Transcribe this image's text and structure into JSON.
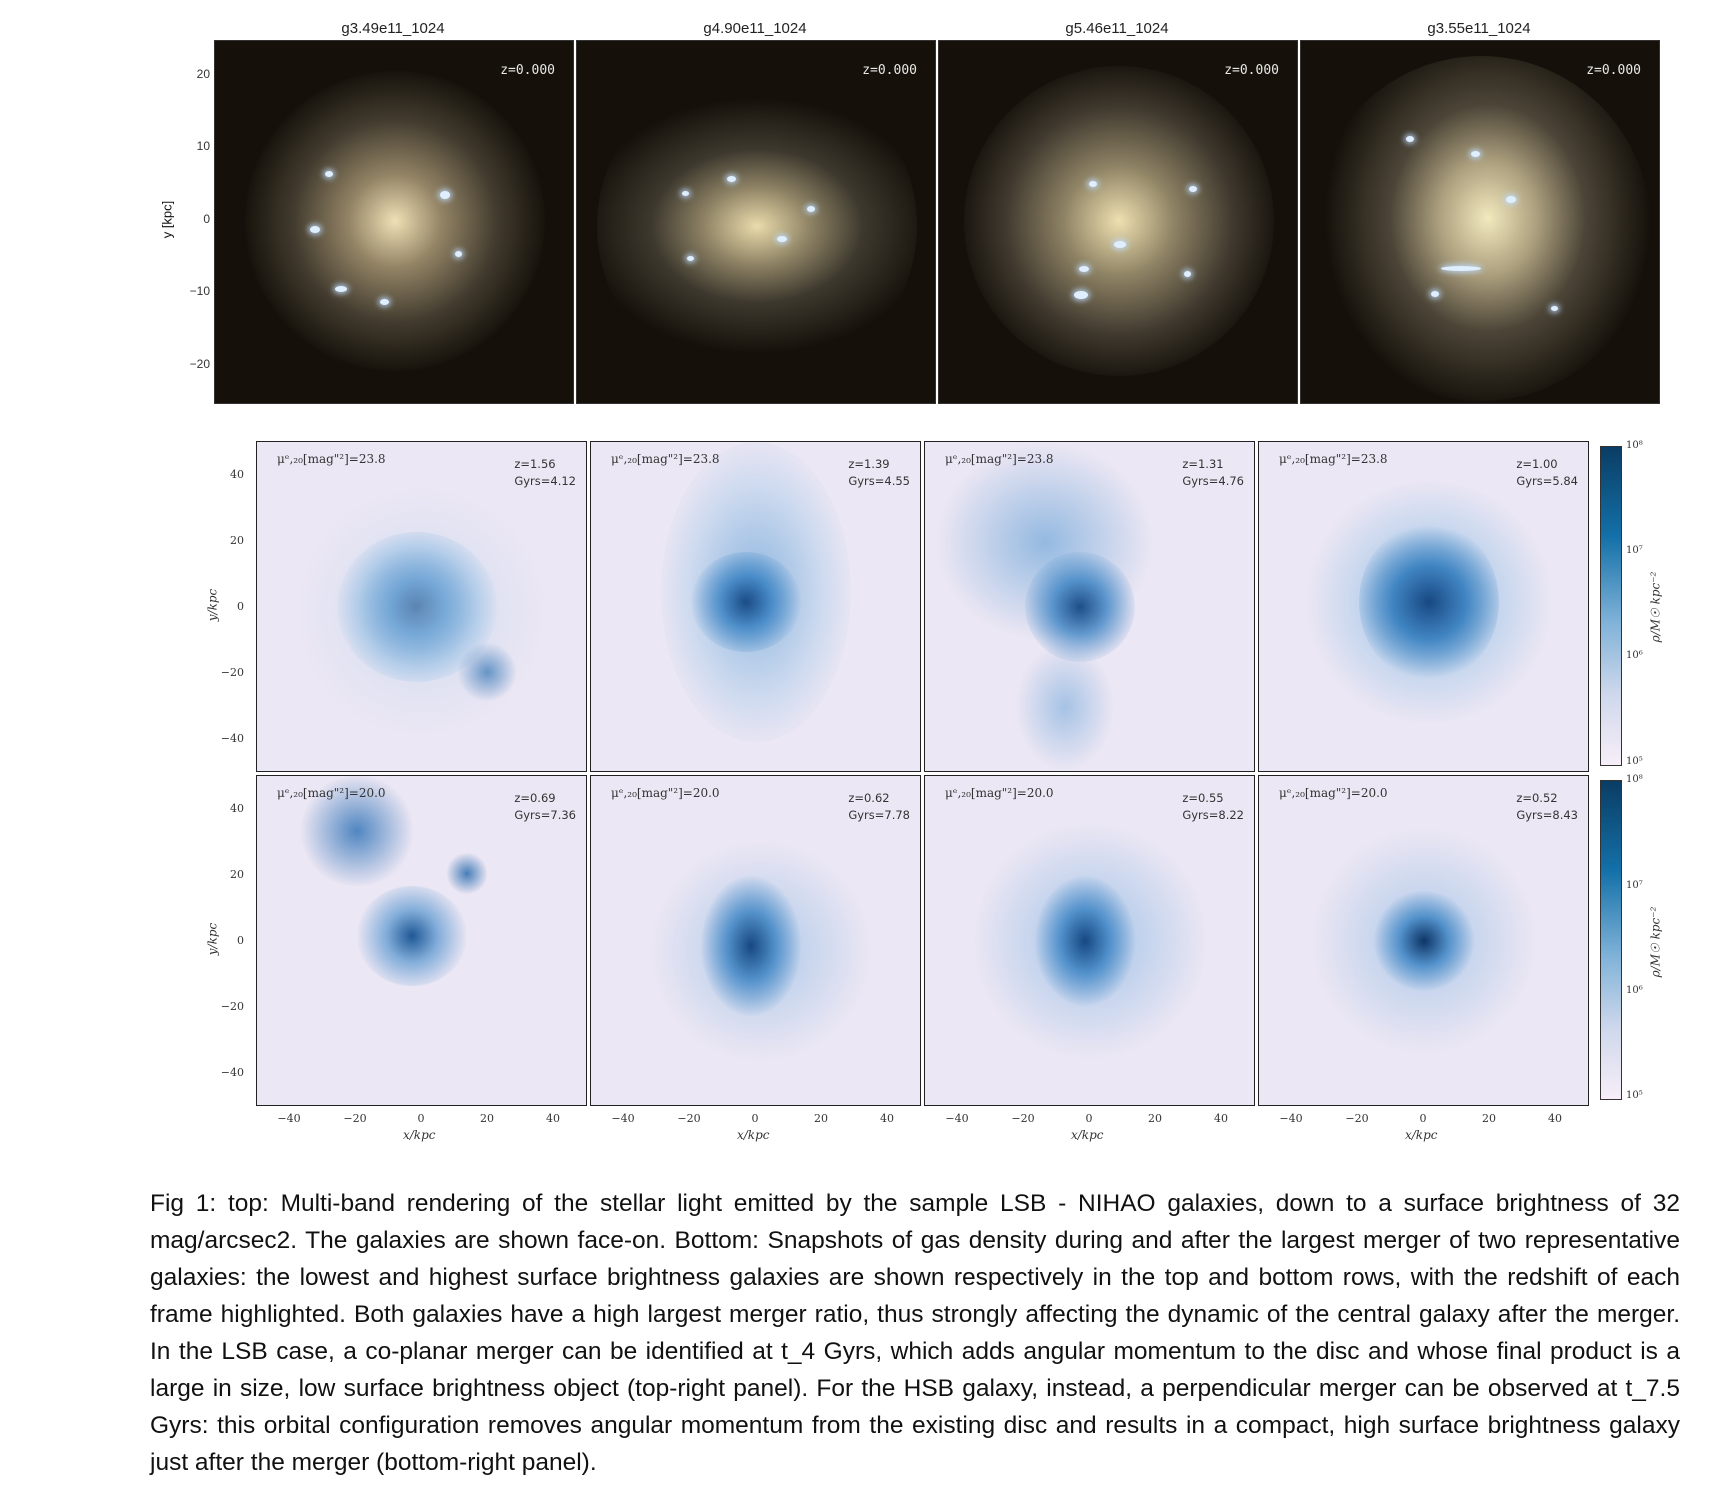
{
  "top_row": {
    "y_axis_label": "y [kpc]",
    "y_ticks": [
      "20",
      "10",
      "0",
      "−10",
      "−20"
    ],
    "panels": [
      {
        "title": "g3.49e11_1024",
        "z": "z=0.000"
      },
      {
        "title": "g4.90e11_1024",
        "z": "z=0.000"
      },
      {
        "title": "g5.46e11_1024",
        "z": "z=0.000"
      },
      {
        "title": "g3.55e11_1024",
        "z": "z=0.000"
      }
    ]
  },
  "gas_grid": {
    "y_axis_label": "y/kpc",
    "x_axis_label": "x/kpc",
    "y_ticks": [
      "40",
      "20",
      "0",
      "−20",
      "−40"
    ],
    "x_ticks": [
      "−40",
      "−20",
      "0",
      "20",
      "40"
    ],
    "colorbar_label": "ρ/M☉ kpc⁻²",
    "colorbar_ticks": [
      "10⁸",
      "10⁷",
      "10⁶",
      "10⁵"
    ],
    "rows": [
      {
        "mu": "μᵉ,₂₀[mag\"²]=23.8",
        "panels": [
          {
            "z": "z=1.56",
            "gyrs": "Gyrs=4.12"
          },
          {
            "z": "z=1.39",
            "gyrs": "Gyrs=4.55"
          },
          {
            "z": "z=1.31",
            "gyrs": "Gyrs=4.76"
          },
          {
            "z": "z=1.00",
            "gyrs": "Gyrs=5.84"
          }
        ]
      },
      {
        "mu": "μᵉ,₂₀[mag\"²]=20.0",
        "panels": [
          {
            "z": "z=0.69",
            "gyrs": "Gyrs=7.36"
          },
          {
            "z": "z=0.62",
            "gyrs": "Gyrs=7.78"
          },
          {
            "z": "z=0.55",
            "gyrs": "Gyrs=8.22"
          },
          {
            "z": "z=0.52",
            "gyrs": "Gyrs=8.43"
          }
        ]
      }
    ]
  },
  "caption": "Fig 1: top: Multi-band rendering of the stellar light emitted by the sample LSB - NIHAO galaxies, down to a surface brightness of 32 mag/arcsec2. The galaxies are shown face-on. Bottom: Snapshots of gas density during and after the largest merger of two representative galaxies: the lowest and highest surface brightness galaxies are shown respectively in the top and bottom rows, with the redshift of each frame highlighted. Both galaxies have a high largest merger ratio, thus strongly affecting the dynamic of the central galaxy after the merger. In the LSB case, a co-planar merger can be identified at t_4 Gyrs, which adds angular momentum to the disc and whose final product is a large in size, low surface  brightness object (top-right panel). For the HSB galaxy, instead, a perpendicular merger can be observed at t_7.5 Gyrs: this orbital configuration removes angular momentum from the existing disc and results in a compact, high surface brightness galaxy just after the merger (bottom-right panel)."
}
